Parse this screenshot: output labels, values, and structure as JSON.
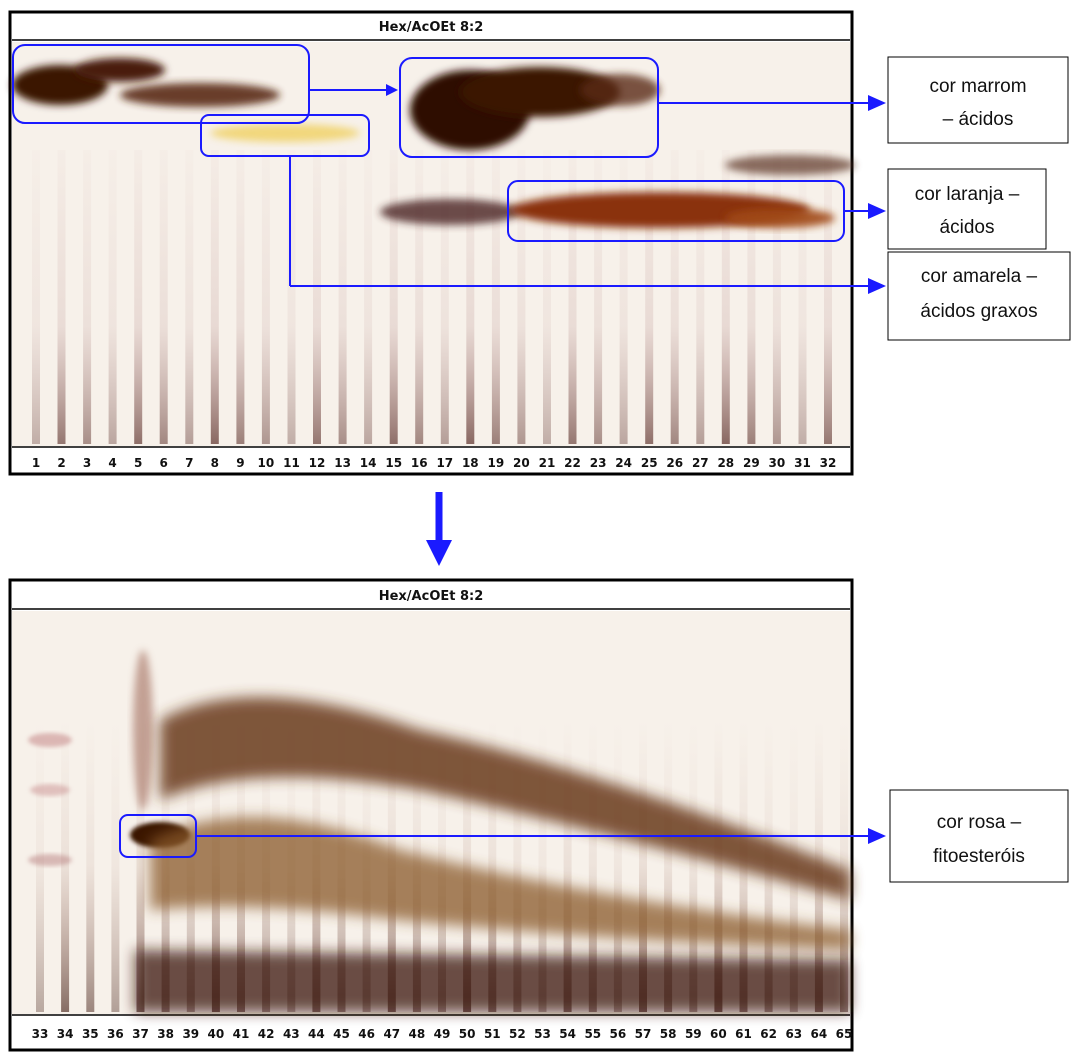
{
  "plates": [
    {
      "title": "Hex/AcOEt 8:2",
      "lanes": [
        "1",
        "2",
        "3",
        "4",
        "5",
        "6",
        "7",
        "8",
        "9",
        "10",
        "11",
        "12",
        "13",
        "14",
        "15",
        "16",
        "17",
        "18",
        "19",
        "20",
        "21",
        "22",
        "23",
        "24",
        "25",
        "26",
        "27",
        "28",
        "29",
        "30",
        "31",
        "32"
      ]
    },
    {
      "title": "Hex/AcOEt 8:2",
      "lanes": [
        "33",
        "34",
        "35",
        "36",
        "37",
        "38",
        "39",
        "40",
        "41",
        "42",
        "43",
        "44",
        "45",
        "46",
        "47",
        "48",
        "49",
        "50",
        "51",
        "52",
        "53",
        "54",
        "55",
        "56",
        "57",
        "58",
        "59",
        "60",
        "61",
        "62",
        "63",
        "64",
        "65"
      ]
    }
  ],
  "annotations": [
    {
      "line1": "cor marrom",
      "line2": "– ácidos"
    },
    {
      "line1": "cor laranja –",
      "line2": "ácidos"
    },
    {
      "line1": "cor amarela –",
      "line2": "ácidos graxos"
    },
    {
      "line1": "cor rosa –",
      "line2": "fitoesteróis"
    }
  ],
  "colors": {
    "highlight": "#1a1aff",
    "brown_spot": "#4a1f0c",
    "orange_spot": "#9a3a10",
    "yellow_spot": "#f0d060",
    "plate_background": "#f7f1ea"
  }
}
